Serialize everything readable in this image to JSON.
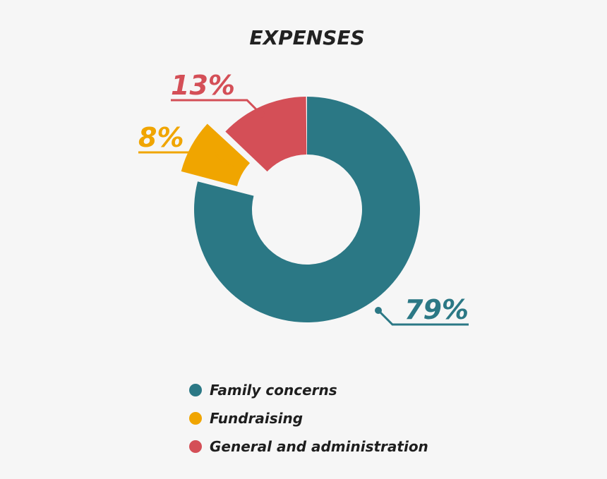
{
  "chart_data": {
    "type": "pie",
    "style": "donut",
    "title": "EXPENSES",
    "categories": [
      "Family concerns",
      "Fundraising",
      "General and administration"
    ],
    "values": [
      79,
      8,
      13
    ],
    "labels": [
      "79%",
      "8%",
      "13%"
    ],
    "colors": [
      "#2b7885",
      "#f0a500",
      "#d44f57"
    ],
    "legend": "bottom",
    "exploded": "Fundraising"
  }
}
